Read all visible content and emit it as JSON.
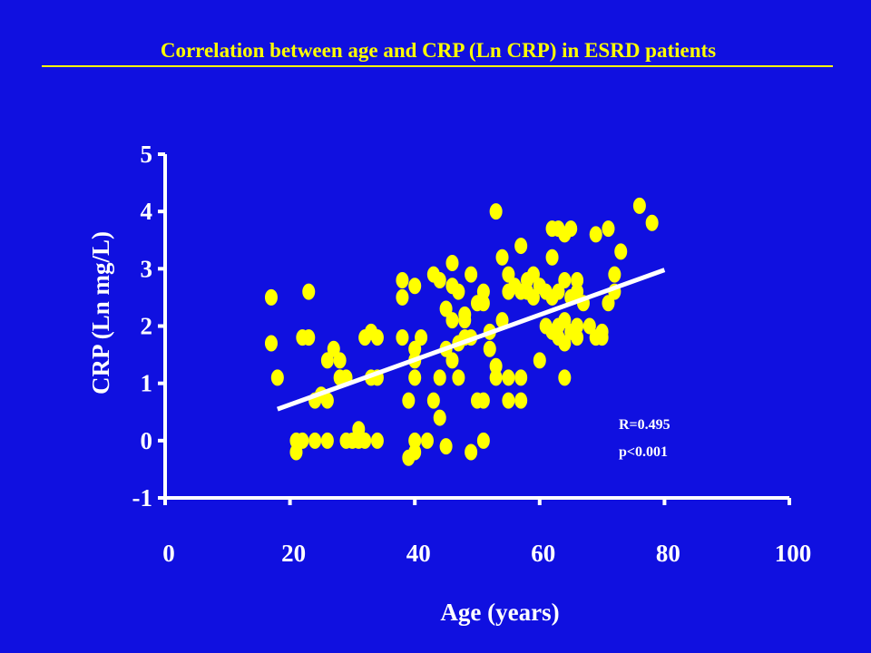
{
  "chart_data": {
    "type": "scatter",
    "title": "Correlation between age and CRP (Ln CRP) in ESRD patients",
    "xlabel": "Age (years)",
    "ylabel": "CRP (Ln mg/L)",
    "xlim": [
      0,
      100
    ],
    "ylim": [
      -1,
      5
    ],
    "xticks": [
      "0",
      "20",
      "40",
      "60",
      "80",
      "100"
    ],
    "yticks": [
      "-1",
      "0",
      "1",
      "2",
      "3",
      "4",
      "5"
    ],
    "grid": false,
    "points": [
      [
        17,
        2.5
      ],
      [
        17,
        1.7
      ],
      [
        18,
        1.1
      ],
      [
        21,
        0.0
      ],
      [
        21,
        -0.2
      ],
      [
        22,
        0.0
      ],
      [
        22,
        1.8
      ],
      [
        23,
        2.6
      ],
      [
        23,
        1.8
      ],
      [
        24,
        0.0
      ],
      [
        24,
        0.7
      ],
      [
        25,
        0.8
      ],
      [
        26,
        0.7
      ],
      [
        26,
        1.4
      ],
      [
        26,
        0.0
      ],
      [
        27,
        1.6
      ],
      [
        28,
        1.1
      ],
      [
        28,
        1.4
      ],
      [
        29,
        0.0
      ],
      [
        29,
        1.1
      ],
      [
        30,
        0.0
      ],
      [
        31,
        0.2
      ],
      [
        31,
        0.0
      ],
      [
        32,
        1.8
      ],
      [
        32,
        0.0
      ],
      [
        33,
        1.9
      ],
      [
        33,
        1.1
      ],
      [
        34,
        0.0
      ],
      [
        34,
        1.8
      ],
      [
        34,
        1.1
      ],
      [
        38,
        2.8
      ],
      [
        38,
        2.5
      ],
      [
        38,
        1.8
      ],
      [
        39,
        0.7
      ],
      [
        40,
        0.0
      ],
      [
        40,
        1.4
      ],
      [
        40,
        1.1
      ],
      [
        40,
        1.6
      ],
      [
        40,
        2.7
      ],
      [
        39,
        -0.3
      ],
      [
        40,
        -0.2
      ],
      [
        41,
        1.8
      ],
      [
        42,
        0.0
      ],
      [
        43,
        0.7
      ],
      [
        43,
        2.9
      ],
      [
        44,
        1.1
      ],
      [
        44,
        0.4
      ],
      [
        44,
        2.8
      ],
      [
        45,
        2.3
      ],
      [
        45,
        1.6
      ],
      [
        45,
        -0.1
      ],
      [
        46,
        3.1
      ],
      [
        46,
        2.7
      ],
      [
        46,
        2.1
      ],
      [
        46,
        1.4
      ],
      [
        47,
        1.1
      ],
      [
        47,
        2.6
      ],
      [
        47,
        1.7
      ],
      [
        48,
        2.2
      ],
      [
        48,
        2.1
      ],
      [
        48,
        1.8
      ],
      [
        49,
        2.9
      ],
      [
        49,
        1.8
      ],
      [
        49,
        -0.2
      ],
      [
        50,
        2.4
      ],
      [
        50,
        0.7
      ],
      [
        51,
        2.6
      ],
      [
        51,
        2.4
      ],
      [
        51,
        0.7
      ],
      [
        51,
        0.0
      ],
      [
        52,
        1.9
      ],
      [
        52,
        1.6
      ],
      [
        53,
        1.3
      ],
      [
        53,
        1.1
      ],
      [
        53,
        4.0
      ],
      [
        54,
        3.2
      ],
      [
        54,
        2.1
      ],
      [
        55,
        2.9
      ],
      [
        55,
        2.6
      ],
      [
        55,
        1.1
      ],
      [
        55,
        0.7
      ],
      [
        56,
        2.7
      ],
      [
        57,
        3.4
      ],
      [
        57,
        2.6
      ],
      [
        57,
        1.1
      ],
      [
        57,
        0.7
      ],
      [
        58,
        2.8
      ],
      [
        58,
        2.6
      ],
      [
        59,
        2.9
      ],
      [
        59,
        2.5
      ],
      [
        60,
        2.7
      ],
      [
        60,
        1.4
      ],
      [
        61,
        2.6
      ],
      [
        61,
        2.0
      ],
      [
        62,
        3.7
      ],
      [
        62,
        3.2
      ],
      [
        62,
        2.5
      ],
      [
        62,
        1.9
      ],
      [
        63,
        3.7
      ],
      [
        63,
        2.6
      ],
      [
        63,
        2.0
      ],
      [
        63,
        1.8
      ],
      [
        64,
        3.6
      ],
      [
        64,
        2.8
      ],
      [
        64,
        2.1
      ],
      [
        64,
        1.7
      ],
      [
        64,
        1.1
      ],
      [
        65,
        3.7
      ],
      [
        65,
        2.5
      ],
      [
        65,
        1.9
      ],
      [
        66,
        2.8
      ],
      [
        66,
        2.6
      ],
      [
        66,
        2.0
      ],
      [
        66,
        1.8
      ],
      [
        67,
        2.4
      ],
      [
        68,
        2.0
      ],
      [
        69,
        1.8
      ],
      [
        69,
        3.6
      ],
      [
        70,
        1.9
      ],
      [
        70,
        1.8
      ],
      [
        71,
        3.7
      ],
      [
        71,
        2.4
      ],
      [
        72,
        2.6
      ],
      [
        72,
        2.9
      ],
      [
        73,
        3.3
      ],
      [
        76,
        4.1
      ],
      [
        78,
        3.8
      ]
    ],
    "fit_line": {
      "x": [
        18,
        80
      ],
      "y": [
        0.55,
        2.98
      ]
    },
    "annotation": {
      "r_text": "R=0.495",
      "p_text": "p<0.001"
    },
    "colors": {
      "background": "#1010e0",
      "points": "#ffff00",
      "title": "#ffff00",
      "axes": "#ffffff",
      "labels": "#ffffff",
      "fit_line": "#ffffff"
    }
  }
}
